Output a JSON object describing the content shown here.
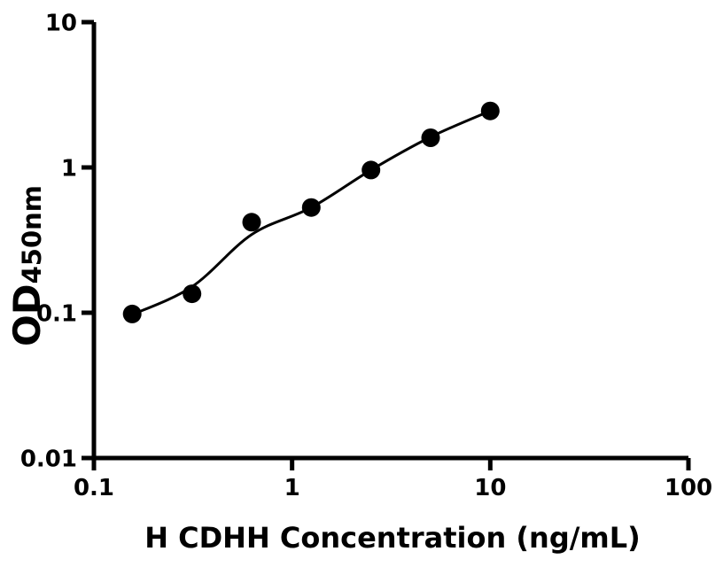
{
  "chart_data": {
    "type": "scatter",
    "title": "",
    "xlabel": "H CDHH Concentration (ng/mL)",
    "ylabel": "OD",
    "ylabel_subscript": "450nm",
    "x_scale": "log10",
    "y_scale": "log10",
    "xlim": [
      0.1,
      100
    ],
    "ylim": [
      0.01,
      10
    ],
    "grid": false,
    "legend": null,
    "x_ticks": [
      {
        "value": 0.1,
        "label": "0.1"
      },
      {
        "value": 1,
        "label": "1"
      },
      {
        "value": 10,
        "label": "10"
      },
      {
        "value": 100,
        "label": "100"
      }
    ],
    "y_ticks": [
      {
        "value": 0.01,
        "label": "0.01"
      },
      {
        "value": 0.1,
        "label": "0.1"
      },
      {
        "value": 1,
        "label": "1"
      },
      {
        "value": 10,
        "label": "10"
      }
    ],
    "series": [
      {
        "name": "standard-points",
        "marker": "filled-circle",
        "color": "#000000",
        "points": [
          {
            "x": 0.156,
            "y": 0.098
          },
          {
            "x": 0.3125,
            "y": 0.135
          },
          {
            "x": 0.625,
            "y": 0.42
          },
          {
            "x": 1.25,
            "y": 0.53
          },
          {
            "x": 2.5,
            "y": 0.96
          },
          {
            "x": 5,
            "y": 1.6
          },
          {
            "x": 10,
            "y": 2.45
          }
        ]
      }
    ],
    "fit_curve": {
      "name": "standard-curve-fit",
      "color": "#000000",
      "points": [
        {
          "x": 0.156,
          "y": 0.097
        },
        {
          "x": 0.3125,
          "y": 0.151
        },
        {
          "x": 0.625,
          "y": 0.345
        },
        {
          "x": 1.25,
          "y": 0.53
        },
        {
          "x": 2.5,
          "y": 0.96
        },
        {
          "x": 5,
          "y": 1.62
        },
        {
          "x": 10,
          "y": 2.45
        }
      ]
    },
    "colors": {
      "axis": "#000000",
      "marker": "#000000",
      "curve": "#000000",
      "text": "#000000",
      "background": "#ffffff"
    }
  }
}
